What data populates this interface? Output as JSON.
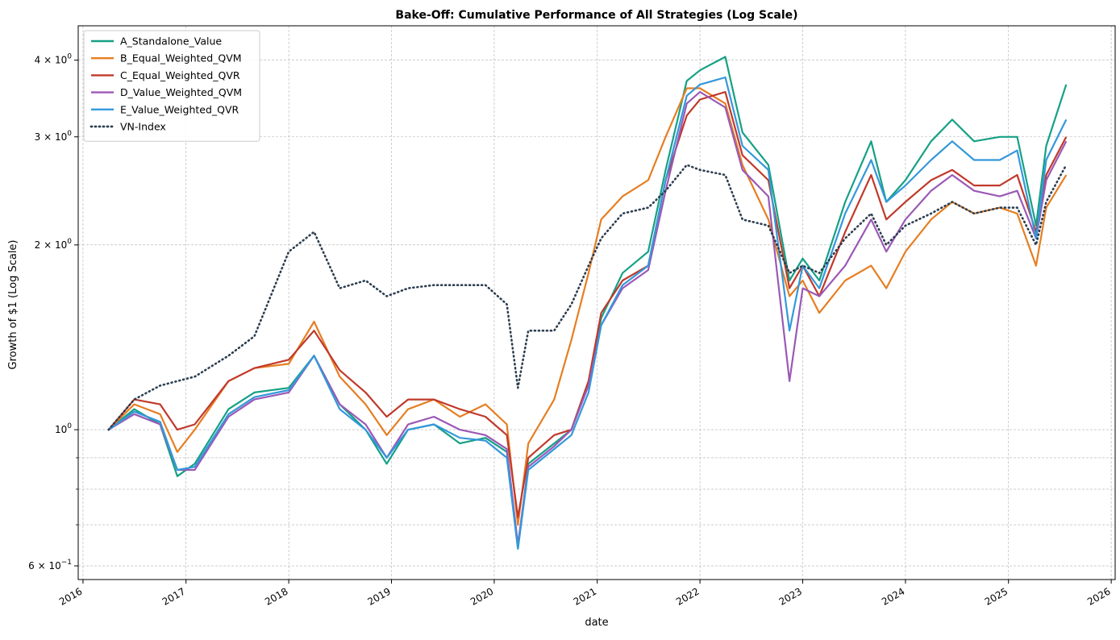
{
  "chart_data": {
    "type": "line",
    "title": "Bake-Off: Cumulative Performance of All Strategies (Log Scale)",
    "xlabel": "date",
    "ylabel": "Growth of $1 (Log Scale)",
    "yscale": "log",
    "grid": true,
    "legend_position": "top-left",
    "xlim": [
      "2015-12-15",
      "2026-01-15"
    ],
    "ylim": [
      0.57,
      4.55
    ],
    "x_ticks": [
      "2016",
      "2017",
      "2018",
      "2019",
      "2020",
      "2021",
      "2022",
      "2023",
      "2024",
      "2025",
      "2026"
    ],
    "y_major_ticks": [
      {
        "value": 0.6,
        "base": "6 × 10",
        "exp": "−1"
      },
      {
        "value": 1.0,
        "base": "10",
        "exp": "0"
      },
      {
        "value": 2.0,
        "base": "2 × 10",
        "exp": "0"
      },
      {
        "value": 3.0,
        "base": "3 × 10",
        "exp": "0"
      },
      {
        "value": 4.0,
        "base": "4 × 10",
        "exp": "0"
      }
    ],
    "y_minor_ticks": [
      0.7,
      0.8,
      0.9
    ],
    "x": [
      "2016-04-01",
      "2016-07-01",
      "2016-10-01",
      "2016-12-01",
      "2017-02-01",
      "2017-06-01",
      "2017-09-01",
      "2018-01-01",
      "2018-04-01",
      "2018-07-01",
      "2018-10-01",
      "2018-12-15",
      "2019-03-01",
      "2019-06-01",
      "2019-09-01",
      "2019-12-01",
      "2020-02-15",
      "2020-03-25",
      "2020-05-01",
      "2020-08-01",
      "2020-10-01",
      "2020-12-01",
      "2021-01-15",
      "2021-04-01",
      "2021-07-01",
      "2021-09-01",
      "2021-11-15",
      "2022-01-01",
      "2022-04-01",
      "2022-06-01",
      "2022-09-01",
      "2022-11-15",
      "2023-01-01",
      "2023-03-01",
      "2023-06-01",
      "2023-09-01",
      "2023-10-25",
      "2024-01-01",
      "2024-04-01",
      "2024-06-15",
      "2024-09-01",
      "2024-12-01",
      "2025-02-01",
      "2025-04-09",
      "2025-05-15",
      "2025-07-25"
    ],
    "series": [
      {
        "name": "A_Standalone_Value",
        "color": "#16a085",
        "style": "solid",
        "values": [
          1.0,
          1.08,
          1.02,
          0.84,
          0.88,
          1.08,
          1.15,
          1.17,
          1.32,
          1.1,
          1.0,
          0.88,
          1.0,
          1.02,
          0.95,
          0.97,
          0.92,
          0.64,
          0.88,
          0.95,
          1.0,
          1.2,
          1.52,
          1.8,
          1.95,
          2.65,
          3.7,
          3.85,
          4.05,
          3.05,
          2.7,
          1.75,
          1.9,
          1.75,
          2.35,
          2.95,
          2.35,
          2.55,
          2.95,
          3.2,
          2.95,
          3.0,
          3.0,
          2.15,
          2.9,
          3.65
        ]
      },
      {
        "name": "B_Equal_Weighted_QVM",
        "color": "#e67e22",
        "style": "solid",
        "values": [
          1.0,
          1.1,
          1.06,
          0.92,
          1.0,
          1.2,
          1.26,
          1.28,
          1.5,
          1.22,
          1.1,
          0.98,
          1.08,
          1.12,
          1.05,
          1.1,
          1.02,
          0.7,
          0.95,
          1.12,
          1.4,
          1.8,
          2.2,
          2.4,
          2.55,
          3.0,
          3.6,
          3.6,
          3.4,
          2.7,
          2.2,
          1.65,
          1.75,
          1.55,
          1.75,
          1.85,
          1.7,
          1.95,
          2.2,
          2.35,
          2.25,
          2.3,
          2.25,
          1.85,
          2.3,
          2.6
        ]
      },
      {
        "name": "C_Equal_Weighted_QVR",
        "color": "#c0392b",
        "style": "solid",
        "values": [
          1.0,
          1.12,
          1.1,
          1.0,
          1.02,
          1.2,
          1.26,
          1.3,
          1.45,
          1.25,
          1.15,
          1.05,
          1.12,
          1.12,
          1.08,
          1.05,
          0.98,
          0.72,
          0.9,
          0.98,
          1.0,
          1.2,
          1.55,
          1.75,
          1.85,
          2.55,
          3.25,
          3.45,
          3.55,
          2.8,
          2.55,
          1.7,
          1.85,
          1.65,
          2.1,
          2.6,
          2.2,
          2.35,
          2.55,
          2.65,
          2.5,
          2.5,
          2.6,
          2.1,
          2.6,
          3.0
        ]
      },
      {
        "name": "D_Value_Weighted_QVM",
        "color": "#9b59b6",
        "style": "solid",
        "values": [
          1.0,
          1.06,
          1.02,
          0.86,
          0.86,
          1.05,
          1.12,
          1.15,
          1.32,
          1.1,
          1.02,
          0.9,
          1.02,
          1.05,
          1.0,
          0.98,
          0.93,
          0.65,
          0.87,
          0.94,
          1.0,
          1.18,
          1.48,
          1.7,
          1.82,
          2.45,
          3.4,
          3.55,
          3.35,
          2.65,
          2.4,
          1.2,
          1.7,
          1.65,
          1.85,
          2.2,
          1.95,
          2.2,
          2.45,
          2.6,
          2.45,
          2.4,
          2.45,
          2.05,
          2.55,
          2.95
        ]
      },
      {
        "name": "E_Value_Weighted_QVR",
        "color": "#3498db",
        "style": "solid",
        "values": [
          1.0,
          1.07,
          1.03,
          0.86,
          0.87,
          1.06,
          1.13,
          1.16,
          1.32,
          1.08,
          1.0,
          0.9,
          1.0,
          1.02,
          0.97,
          0.96,
          0.9,
          0.64,
          0.86,
          0.93,
          0.98,
          1.15,
          1.48,
          1.72,
          1.85,
          2.55,
          3.5,
          3.65,
          3.75,
          2.9,
          2.65,
          1.45,
          1.85,
          1.7,
          2.25,
          2.75,
          2.35,
          2.5,
          2.75,
          2.95,
          2.75,
          2.75,
          2.85,
          2.05,
          2.75,
          3.2
        ]
      },
      {
        "name": "VN-Index",
        "color": "#2c3e50",
        "style": "dotted",
        "values": [
          1.0,
          1.12,
          1.18,
          1.2,
          1.22,
          1.32,
          1.42,
          1.95,
          2.1,
          1.7,
          1.75,
          1.65,
          1.7,
          1.72,
          1.72,
          1.72,
          1.6,
          1.17,
          1.45,
          1.45,
          1.6,
          1.85,
          2.05,
          2.25,
          2.3,
          2.45,
          2.7,
          2.65,
          2.6,
          2.2,
          2.15,
          1.8,
          1.85,
          1.8,
          2.05,
          2.25,
          2.0,
          2.15,
          2.25,
          2.35,
          2.25,
          2.3,
          2.3,
          2.0,
          2.35,
          2.7
        ]
      }
    ]
  }
}
